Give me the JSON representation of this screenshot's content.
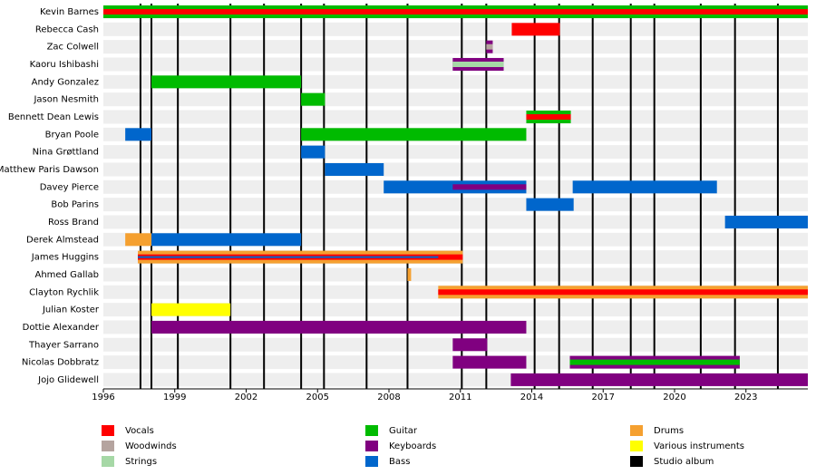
{
  "chart_data": {
    "type": "timeline",
    "categories": [
      "Kevin Barnes",
      "Rebecca Cash",
      "Zac Colwell",
      "Kaoru Ishibashi",
      "Andy Gonzalez",
      "Jason Nesmith",
      "Bennett Dean Lewis",
      "Bryan Poole",
      "Nina Grøttland",
      "Matthew Paris Dawson",
      "Davey Pierce",
      "Bob Parins",
      "Ross Brand",
      "Derek Almstead",
      "James Huggins",
      "Ahmed Gallab",
      "Clayton Rychlik",
      "Julian Koster",
      "Dottie Alexander",
      "Thayer Sarrano",
      "Nicolas Dobbratz",
      "Jojo Glidewell"
    ],
    "series": [
      {
        "name": "Vocals",
        "color": "#ff0000",
        "values": [
          [
            [
              1996,
              2025.6
            ]
          ],
          [
            [
              2013.16,
              2015.18
            ]
          ],
          null,
          null,
          null,
          null,
          [
            [
              2013.77,
              2015.64
            ]
          ],
          null,
          null,
          null,
          null,
          null,
          null,
          null,
          [
            [
              1997.45,
              2011.1
            ]
          ],
          null,
          [
            [
              2010.07,
              2025.6
            ]
          ],
          null,
          null,
          null,
          null,
          null
        ]
      },
      {
        "name": "Woodwinds",
        "color": "#b5a49f",
        "values": [
          null,
          null,
          [
            [
              2012.09,
              2012.36
            ]
          ],
          null,
          null,
          null,
          null,
          null,
          null,
          null,
          null,
          null,
          null,
          null,
          null,
          null,
          null,
          null,
          null,
          null,
          null,
          null
        ]
      },
      {
        "name": "Strings",
        "color": "#a6d8a6",
        "values": [
          null,
          null,
          null,
          [
            [
              2010.68,
              2012.82
            ]
          ],
          null,
          null,
          null,
          null,
          null,
          null,
          null,
          null,
          null,
          null,
          null,
          null,
          null,
          null,
          null,
          null,
          null,
          null
        ]
      },
      {
        "name": "Guitar",
        "color": "#00bb00",
        "values": [
          [
            [
              1996,
              2025.6
            ]
          ],
          null,
          null,
          null,
          [
            [
              1998.02,
              2004.31
            ]
          ],
          [
            [
              2004.31,
              2005.31
            ]
          ],
          [
            [
              2013.77,
              2015.64
            ]
          ],
          [
            [
              2004.31,
              2013.77
            ]
          ],
          null,
          null,
          null,
          null,
          null,
          null,
          null,
          null,
          null,
          null,
          null,
          null,
          [
            [
              2015.6,
              2022.74
            ]
          ],
          null
        ]
      },
      {
        "name": "Keyboards",
        "color": "#800080",
        "values": [
          null,
          null,
          [
            [
              2012.09,
              2012.36
            ]
          ],
          [
            [
              2010.68,
              2012.82
            ]
          ],
          null,
          null,
          null,
          null,
          null,
          null,
          [
            [
              2010.68,
              2013.77
            ]
          ],
          null,
          null,
          null,
          null,
          null,
          null,
          null,
          [
            [
              1998.02,
              2013.77
            ]
          ],
          [
            [
              2010.68,
              2012.13
            ]
          ],
          [
            [
              2010.68,
              2013.77
            ],
            [
              2015.6,
              2022.74
            ]
          ],
          [
            [
              2013.12,
              2025.6
            ]
          ]
        ]
      },
      {
        "name": "Bass",
        "color": "#0066cc",
        "values": [
          null,
          null,
          null,
          null,
          null,
          null,
          null,
          [
            [
              1996.92,
              1998.02
            ]
          ],
          [
            [
              2004.31,
              2005.31
            ]
          ],
          [
            [
              2005.31,
              2007.78
            ]
          ],
          [
            [
              2007.78,
              2013.77
            ],
            [
              2015.72,
              2021.78
            ]
          ],
          [
            [
              2013.77,
              2015.76
            ]
          ],
          [
            [
              2022.12,
              2025.6
            ]
          ],
          [
            [
              1998.02,
              2004.31
            ]
          ],
          [
            [
              1997.45,
              2010.07
            ]
          ],
          null,
          null,
          null,
          null,
          null,
          null,
          null
        ]
      },
      {
        "name": "Drums",
        "color": "#f5a030",
        "values": [
          null,
          null,
          null,
          null,
          null,
          null,
          null,
          null,
          null,
          null,
          null,
          null,
          null,
          [
            [
              1996.92,
              1998.02
            ]
          ],
          [
            [
              1997.45,
              2011.1
            ]
          ],
          [
            [
              2008.78,
              2008.93
            ]
          ],
          [
            [
              2010.07,
              2025.6
            ]
          ],
          null,
          null,
          null,
          null,
          null
        ]
      },
      {
        "name": "Various instruments",
        "color": "#ffff00",
        "values": [
          null,
          null,
          null,
          null,
          null,
          null,
          null,
          null,
          null,
          null,
          null,
          null,
          null,
          null,
          null,
          null,
          null,
          [
            [
              1998.02,
              2001.34
            ]
          ],
          null,
          null,
          null,
          null
        ]
      }
    ],
    "albums": {
      "name": "Studio album",
      "color": "#000000",
      "values": [
        1997.56,
        1998.02,
        1999.13,
        2001.34,
        2002.75,
        2004.31,
        2005.27,
        2007.06,
        2008.78,
        2011.06,
        2012.09,
        2014.12,
        2015.15,
        2016.56,
        2018.16,
        2019.15,
        2021.1,
        2022.54,
        2024.34
      ]
    },
    "xlim": [
      1996,
      2025.6
    ],
    "xticks": [
      1996,
      1999,
      2002,
      2005,
      2008,
      2011,
      2014,
      2017,
      2020,
      2023
    ]
  }
}
